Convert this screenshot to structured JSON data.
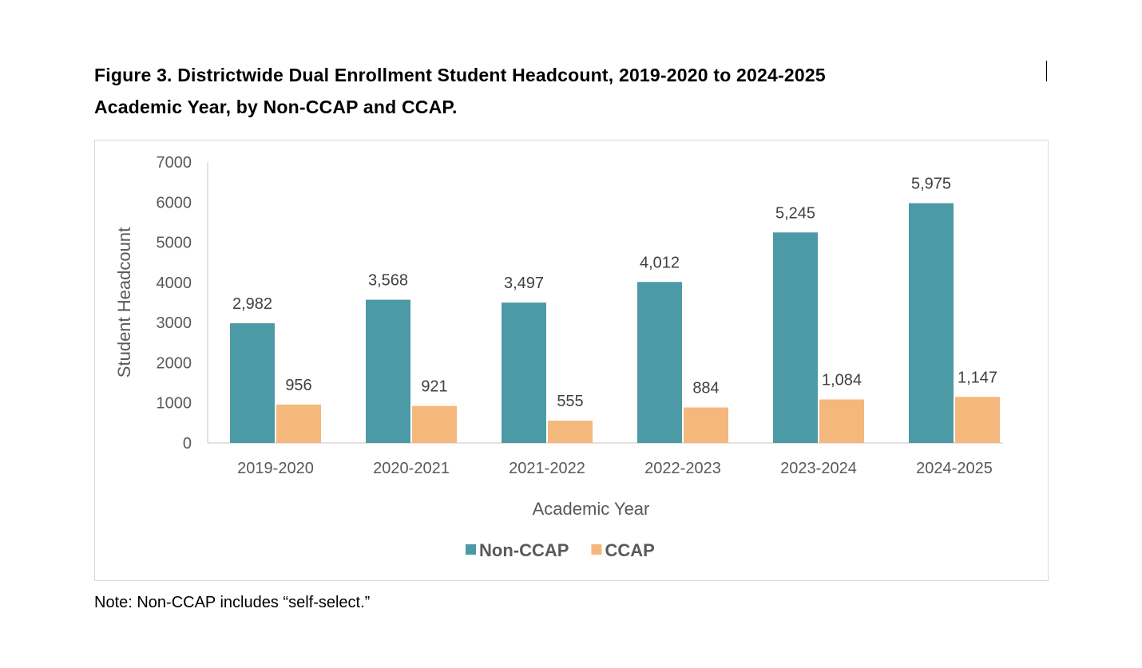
{
  "title_line1": "Figure 3. Districtwide Dual Enrollment Student Headcount, 2019-2020 to 2024-2025",
  "title_line2": "Academic Year, by Non-CCAP and CCAP.",
  "note": "Note: Non-CCAP includes “self-select.”",
  "chart_data": {
    "type": "bar",
    "xlabel": "Academic Year",
    "ylabel": "Student Headcount",
    "ylim": [
      0,
      7000
    ],
    "yticks": [
      "0",
      "1000",
      "2000",
      "3000",
      "4000",
      "5000",
      "6000",
      "7000"
    ],
    "categories": [
      "2019-2020",
      "2020-2021",
      "2021-2022",
      "2022-2023",
      "2023-2024",
      "2024-2025"
    ],
    "series": [
      {
        "name": "Non-CCAP",
        "color": "#4c9aa5",
        "values": [
          2982,
          3568,
          3497,
          4012,
          5245,
          5975
        ],
        "labels": [
          "2,982",
          "3,568",
          "3,497",
          "4,012",
          "5,245",
          "5,975"
        ]
      },
      {
        "name": "CCAP",
        "color": "#f4b77c",
        "values": [
          956,
          921,
          555,
          884,
          1084,
          1147
        ],
        "labels": [
          "956",
          "921",
          "555",
          "884",
          "1,084",
          "1,147"
        ]
      }
    ],
    "legend_position": "bottom",
    "grid": false
  }
}
